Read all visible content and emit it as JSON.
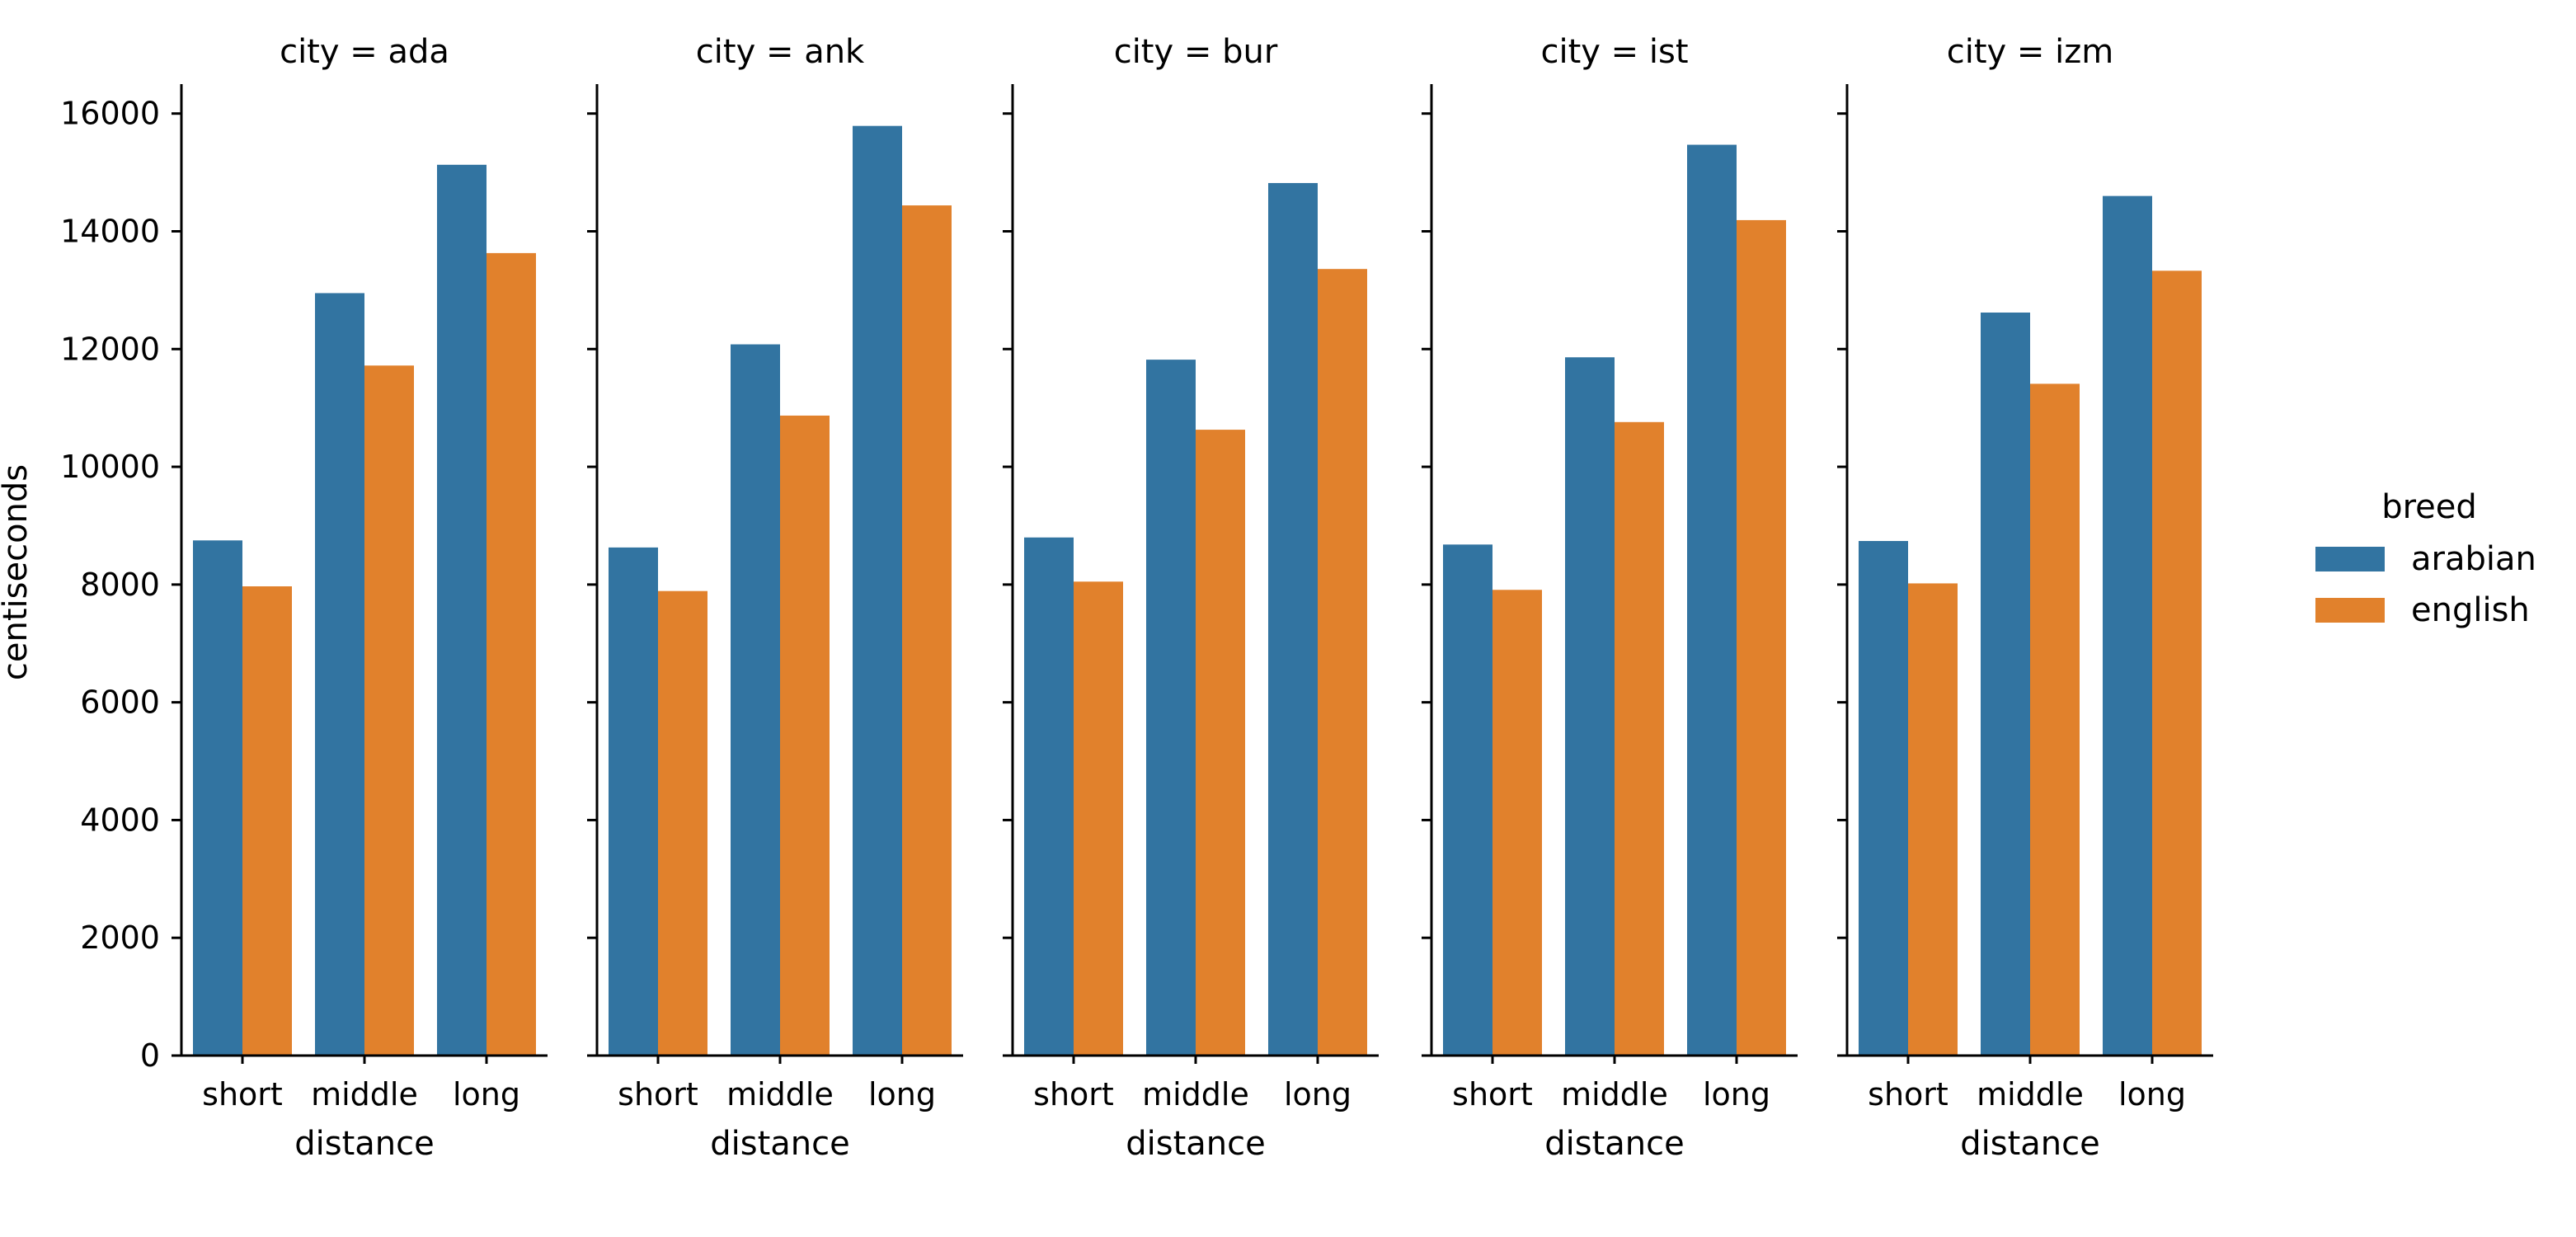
{
  "chart_data": {
    "type": "bar",
    "facet_variable": "city",
    "facet_titles": [
      "city = ada",
      "city = ank",
      "city = bur",
      "city = ist",
      "city = izm"
    ],
    "categories": [
      "short",
      "middle",
      "long"
    ],
    "xlabel": "distance",
    "ylabel": "centiseconds",
    "ylim": [
      0,
      16500
    ],
    "yticks": [
      0,
      2000,
      4000,
      6000,
      8000,
      10000,
      12000,
      14000,
      16000
    ],
    "legend": {
      "title": "breed",
      "placement": "right"
    },
    "colors": {
      "arabian": "#3274a1",
      "english": "#e1812c"
    },
    "series_names": [
      "arabian",
      "english"
    ],
    "facets": [
      {
        "city": "ada",
        "series": [
          {
            "name": "arabian",
            "values": [
              8750,
              12950,
              15130
            ]
          },
          {
            "name": "english",
            "values": [
              7970,
              11720,
              13630
            ]
          }
        ]
      },
      {
        "city": "ank",
        "series": [
          {
            "name": "arabian",
            "values": [
              8630,
              12080,
              15790
            ]
          },
          {
            "name": "english",
            "values": [
              7890,
              10870,
              14440
            ]
          }
        ]
      },
      {
        "city": "bur",
        "series": [
          {
            "name": "arabian",
            "values": [
              8800,
              11820,
              14820
            ]
          },
          {
            "name": "english",
            "values": [
              8050,
              10630,
              13360
            ]
          }
        ]
      },
      {
        "city": "ist",
        "series": [
          {
            "name": "arabian",
            "values": [
              8680,
              11860,
              15470
            ]
          },
          {
            "name": "english",
            "values": [
              7910,
              10760,
              14190
            ]
          }
        ]
      },
      {
        "city": "izm",
        "series": [
          {
            "name": "arabian",
            "values": [
              8740,
              12620,
              14600
            ]
          },
          {
            "name": "english",
            "values": [
              8020,
              11410,
              13330
            ]
          }
        ]
      }
    ]
  }
}
